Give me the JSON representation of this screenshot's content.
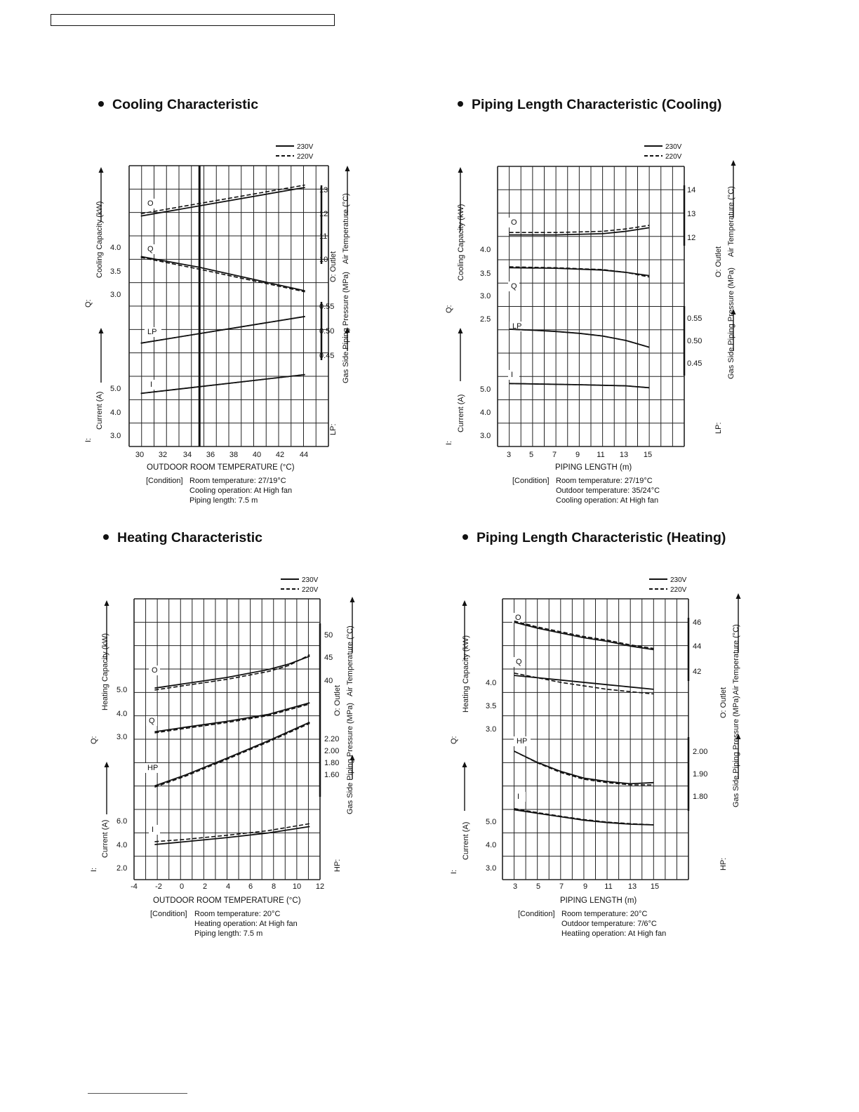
{
  "legend": {
    "solid": "230V",
    "dashed": "220V"
  },
  "chart_data": [
    {
      "type": "line",
      "title": "Cooling Characteristic",
      "xlabel": "OUTDOOR  ROOM TEMPERATURE (°C)",
      "x_ticks": [
        "30",
        "32",
        "34",
        "36",
        "38",
        "40",
        "42",
        "44"
      ],
      "left_labels": {
        "q_symbol": "Q:",
        "q_text": "Cooling Capacity (kW)",
        "i_symbol": "I:",
        "i_text": "Current (A)"
      },
      "right_labels": {
        "o_symbol": "O: Outlet",
        "o_text": "Air Temperature (°C)",
        "p_symbol": "LP:",
        "p_text": "Gas Side Piping Pressure (MPa)"
      },
      "q_ticks": [
        "4.0",
        "3.5",
        "3.0"
      ],
      "i_ticks": [
        "5.0",
        "4.0",
        "3.0"
      ],
      "o_ticks": [
        "13",
        "12",
        "11",
        "10"
      ],
      "p_ticks": [
        "0.55",
        "0.50",
        "0.45"
      ],
      "condition": {
        "label": "[Condition]",
        "lines": [
          "Room temperature: 27/19°C",
          "Cooling operation: At High fan",
          "Piping length: 7.5 m"
        ]
      },
      "curve_labels": {
        "O": "O",
        "Q": "Q",
        "P": "LP",
        "I": "I"
      },
      "marker_x": 35,
      "series": [
        {
          "name": "230V",
          "curves": {
            "O": [
              [
                30,
                11.8
              ],
              [
                44,
                13.0
              ]
            ],
            "Q": [
              [
                30,
                3.8
              ],
              [
                35,
                3.57
              ],
              [
                44,
                3.07
              ]
            ],
            "P": [
              [
                30,
                0.475
              ],
              [
                44,
                0.53
              ]
            ],
            "I": [
              [
                30,
                4.78
              ],
              [
                44,
                5.58
              ]
            ]
          }
        },
        {
          "name": "220V",
          "curves": {
            "O": [
              [
                30,
                11.9
              ],
              [
                44,
                13.1
              ]
            ],
            "Q": [
              [
                30,
                3.78
              ],
              [
                35,
                3.53
              ],
              [
                44,
                3.05
              ]
            ],
            "P": [
              [
                30,
                0.475
              ],
              [
                44,
                0.53
              ]
            ],
            "I": [
              [
                30,
                4.78
              ],
              [
                44,
                5.58
              ]
            ]
          }
        }
      ]
    },
    {
      "type": "line",
      "title": "Piping Length Characteristic (Cooling)",
      "xlabel": "PIPING LENGTH (m)",
      "x_ticks": [
        "3",
        "5",
        "7",
        "9",
        "11",
        "13",
        "15"
      ],
      "left_labels": {
        "q_symbol": "Q:",
        "q_text": "Cooling Capacity (kW)",
        "i_symbol": "I:",
        "i_text": "Current (A)"
      },
      "right_labels": {
        "o_symbol": "O: Outlet",
        "o_text": "Air Temperature (°C)",
        "p_symbol": "LP:",
        "p_text": "Gas Side Piping Pressure (MPa)"
      },
      "q_ticks": [
        "4.0",
        "3.5",
        "3.0",
        "2.5"
      ],
      "i_ticks": [
        "5.0",
        "4.0",
        "3.0"
      ],
      "o_ticks": [
        "14",
        "13",
        "12"
      ],
      "p_ticks": [
        "0.55",
        "0.50",
        "0.45"
      ],
      "condition": {
        "label": "[Condition]",
        "lines": [
          "Room temperature: 27/19°C",
          "Outdoor temperature: 35/24°C",
          "Cooling operation: At High fan"
        ]
      },
      "curve_labels": {
        "O": "O",
        "Q": "Q",
        "P": "LP",
        "I": "I"
      },
      "series": [
        {
          "name": "230V",
          "curves": {
            "O": [
              [
                3,
                12.1
              ],
              [
                7,
                12.1
              ],
              [
                11,
                12.15
              ],
              [
                13,
                12.25
              ],
              [
                15,
                12.4
              ]
            ],
            "Q": [
              [
                3,
                3.6
              ],
              [
                7,
                3.59
              ],
              [
                11,
                3.55
              ],
              [
                13,
                3.5
              ],
              [
                15,
                3.43
              ]
            ],
            "P": [
              [
                3,
                0.525
              ],
              [
                5,
                0.523
              ],
              [
                7,
                0.52
              ],
              [
                9,
                0.516
              ],
              [
                11,
                0.51
              ],
              [
                13,
                0.5
              ],
              [
                15,
                0.485
              ]
            ],
            "I": [
              [
                3,
                5.2
              ],
              [
                9,
                5.15
              ],
              [
                13,
                5.1
              ],
              [
                15,
                5.02
              ]
            ]
          }
        },
        {
          "name": "220V",
          "curves": {
            "O": [
              [
                3,
                12.2
              ],
              [
                7,
                12.2
              ],
              [
                11,
                12.25
              ],
              [
                13,
                12.35
              ],
              [
                15,
                12.5
              ]
            ],
            "Q": [
              [
                3,
                3.62
              ],
              [
                7,
                3.6
              ],
              [
                11,
                3.56
              ],
              [
                13,
                3.5
              ],
              [
                15,
                3.4
              ]
            ],
            "P": [
              [
                3,
                0.525
              ],
              [
                5,
                0.523
              ],
              [
                7,
                0.52
              ],
              [
                9,
                0.516
              ],
              [
                11,
                0.51
              ],
              [
                13,
                0.5
              ],
              [
                15,
                0.485
              ]
            ],
            "I": [
              [
                3,
                5.2
              ],
              [
                9,
                5.15
              ],
              [
                13,
                5.1
              ],
              [
                15,
                5.02
              ]
            ]
          }
        }
      ]
    },
    {
      "type": "line",
      "title": "Heating Characteristic",
      "xlabel": "OUTDOOR  ROOM TEMPERATURE (°C)",
      "x_ticks": [
        "-4",
        "-2",
        "0",
        "2",
        "4",
        "6",
        "8",
        "10",
        "12"
      ],
      "left_labels": {
        "q_symbol": "Q:",
        "q_text": "Heating Capacity (kW)",
        "i_symbol": "I:",
        "i_text": "Current (A)"
      },
      "right_labels": {
        "o_symbol": "O: Outlet",
        "o_text": "Air Temperature (°C)",
        "p_symbol": "HP:",
        "p_text": "Gas Side Piping Pressure (MPa)"
      },
      "q_ticks": [
        "5.0",
        "4.0",
        "3.0"
      ],
      "i_ticks": [
        "6.0",
        "4.0",
        "2.0"
      ],
      "o_ticks": [
        "50",
        "45",
        "40"
      ],
      "p_ticks": [
        "2.20",
        "2.00",
        "1.80",
        "1.60"
      ],
      "condition": {
        "label": "[Condition]",
        "lines": [
          "Room temperature: 20°C",
          "Heating operation: At High fan",
          "Piping length: 7.5 m"
        ]
      },
      "curve_labels": {
        "O": "O",
        "Q": "Q",
        "P": "HP",
        "I": "I"
      },
      "series": [
        {
          "name": "230V",
          "curves": {
            "O": [
              [
                -3,
                38.3
              ],
              [
                0,
                39.3
              ],
              [
                4,
                40.6
              ],
              [
                8,
                42.3
              ],
              [
                10,
                43.5
              ],
              [
                12,
                45.2
              ]
            ],
            "Q": [
              [
                -3,
                3.2
              ],
              [
                0,
                3.4
              ],
              [
                4,
                3.65
              ],
              [
                8,
                3.95
              ],
              [
                12,
                4.45
              ]
            ],
            "P": [
              [
                -3,
                1.5
              ],
              [
                0,
                1.595
              ],
              [
                4,
                1.74
              ],
              [
                8,
                1.89
              ],
              [
                12,
                2.05
              ]
            ],
            "I": [
              [
                -3,
                4.0
              ],
              [
                0,
                4.25
              ],
              [
                4,
                4.6
              ],
              [
                8,
                5.0
              ],
              [
                12,
                5.55
              ]
            ]
          }
        },
        {
          "name": "220V",
          "curves": {
            "O": [
              [
                -3,
                37.9
              ],
              [
                0,
                38.9
              ],
              [
                4,
                40.2
              ],
              [
                8,
                41.9
              ],
              [
                10,
                43.2
              ],
              [
                12,
                45.5
              ]
            ],
            "Q": [
              [
                -3,
                3.15
              ],
              [
                0,
                3.35
              ],
              [
                4,
                3.6
              ],
              [
                8,
                3.9
              ],
              [
                12,
                4.4
              ]
            ],
            "P": [
              [
                -3,
                1.49
              ],
              [
                0,
                1.585
              ],
              [
                4,
                1.73
              ],
              [
                8,
                1.88
              ],
              [
                12,
                2.04
              ]
            ],
            "I": [
              [
                -3,
                4.25
              ],
              [
                0,
                4.45
              ],
              [
                4,
                4.8
              ],
              [
                8,
                5.2
              ],
              [
                12,
                5.8
              ]
            ]
          }
        }
      ]
    },
    {
      "type": "line",
      "title": "Piping Length Characteristic (Heating)",
      "xlabel": "PIPING LENGTH (m)",
      "x_ticks": [
        "3",
        "5",
        "7",
        "9",
        "11",
        "13",
        "15"
      ],
      "left_labels": {
        "q_symbol": "Q:",
        "q_text": "Heating Capacity (kW)",
        "i_symbol": "I:",
        "i_text": "Current (A)"
      },
      "right_labels": {
        "o_symbol": "O: Outlet",
        "o_text": "Air Temperature (°C)",
        "p_symbol": "HP:",
        "p_text": "Gas Side Piping Pressure (MPa)"
      },
      "q_ticks": [
        "4.0",
        "3.5",
        "3.0"
      ],
      "i_ticks": [
        "5.0",
        "4.0",
        "3.0"
      ],
      "o_ticks": [
        "46",
        "44",
        "42"
      ],
      "p_ticks": [
        "2.00",
        "1.90",
        "1.80"
      ],
      "condition": {
        "label": "[Condition]",
        "lines": [
          "Room temperature: 20°C",
          "Outdoor temperature: 7/6°C",
          "Heatiing operation: At High fan"
        ]
      },
      "curve_labels": {
        "O": "O",
        "Q": "Q",
        "P": "HP",
        "I": "I"
      },
      "series": [
        {
          "name": "230V",
          "curves": {
            "O": [
              [
                3,
                46.1
              ],
              [
                5,
                45.6
              ],
              [
                7,
                45.2
              ],
              [
                9,
                44.8
              ],
              [
                11,
                44.5
              ],
              [
                13,
                44.1
              ],
              [
                15,
                43.8
              ]
            ],
            "Q": [
              [
                3,
                4.15
              ],
              [
                7,
                4.05
              ],
              [
                11,
                3.95
              ],
              [
                15,
                3.85
              ]
            ],
            "P": [
              [
                3,
                2.0
              ],
              [
                5,
                1.95
              ],
              [
                7,
                1.91
              ],
              [
                9,
                1.88
              ],
              [
                11,
                1.865
              ],
              [
                13,
                1.855
              ],
              [
                15,
                1.86
              ]
            ],
            "I": [
              [
                3,
                5.5
              ],
              [
                5,
                5.35
              ],
              [
                7,
                5.2
              ],
              [
                9,
                5.05
              ],
              [
                11,
                4.95
              ],
              [
                13,
                4.88
              ],
              [
                15,
                4.85
              ]
            ]
          }
        },
        {
          "name": "220V",
          "curves": {
            "O": [
              [
                3,
                46.2
              ],
              [
                5,
                45.7
              ],
              [
                7,
                45.3
              ],
              [
                9,
                44.9
              ],
              [
                11,
                44.6
              ],
              [
                13,
                44.2
              ],
              [
                15,
                43.9
              ]
            ],
            "Q": [
              [
                3,
                4.2
              ],
              [
                7,
                4.0
              ],
              [
                11,
                3.85
              ],
              [
                15,
                3.75
              ]
            ],
            "P": [
              [
                3,
                2.0
              ],
              [
                5,
                1.948
              ],
              [
                7,
                1.905
              ],
              [
                9,
                1.875
              ],
              [
                11,
                1.86
              ],
              [
                13,
                1.85
              ],
              [
                15,
                1.85
              ]
            ],
            "I": [
              [
                3,
                5.55
              ],
              [
                5,
                5.38
              ],
              [
                7,
                5.22
              ],
              [
                9,
                5.08
              ],
              [
                11,
                4.97
              ],
              [
                13,
                4.9
              ],
              [
                15,
                4.85
              ]
            ]
          }
        }
      ]
    }
  ]
}
